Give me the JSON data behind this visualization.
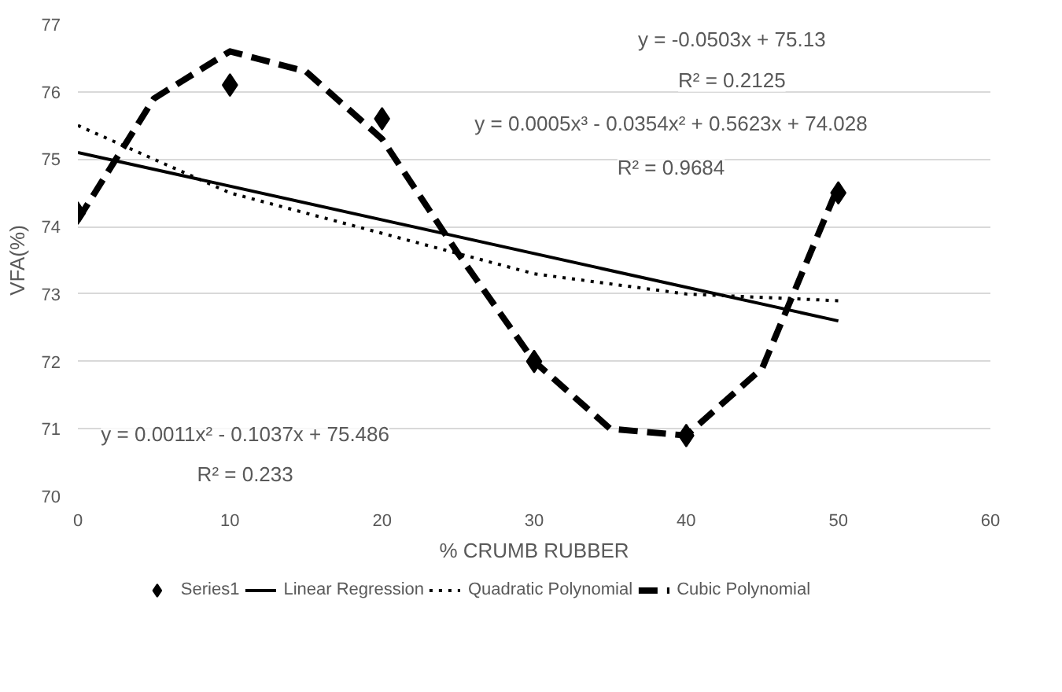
{
  "chart_data": {
    "type": "scatter",
    "xlabel": "% CRUMB RUBBER",
    "ylabel": "VFA(%)",
    "xlim": [
      0,
      60
    ],
    "xticks": [
      0,
      10,
      20,
      30,
      40,
      50,
      60
    ],
    "ylim": [
      70,
      77
    ],
    "yticks": [
      70,
      71,
      72,
      73,
      74,
      75,
      76,
      77
    ],
    "grid": "y",
    "legend": "bottom",
    "series": [
      {
        "name": "Series1",
        "type": "scatter",
        "marker": "diamond",
        "color": "#000000",
        "x": [
          0,
          10,
          20,
          30,
          40,
          50
        ],
        "values": [
          74.2,
          76.1,
          75.6,
          72.0,
          70.9,
          74.5
        ]
      },
      {
        "name": "Linear Regression",
        "type": "line",
        "line_style": "solid",
        "color": "#000000",
        "x": [
          0,
          50
        ],
        "values": [
          75.1,
          72.6
        ]
      },
      {
        "name": "Quadratic Polynomial",
        "type": "line",
        "line_style": "dotted",
        "color": "#000000",
        "x": [
          0,
          10,
          20,
          30,
          40,
          50
        ],
        "values": [
          75.5,
          74.5,
          73.9,
          73.3,
          73.0,
          72.9
        ]
      },
      {
        "name": "Cubic Polynomial",
        "type": "line",
        "line_style": "dashed",
        "color": "#000000",
        "x": [
          0,
          5,
          10,
          15,
          20,
          25,
          30,
          35,
          40,
          45,
          50
        ],
        "values": [
          74.1,
          75.9,
          76.6,
          76.3,
          75.3,
          73.6,
          72.0,
          71.0,
          70.9,
          71.9,
          74.6
        ]
      }
    ],
    "annotations": [
      "y = -0.0503x + 75.13",
      "R² = 0.2125",
      "y = 0.0005x³ - 0.0354x² + 0.5623x + 74.028",
      "R² = 0.9684",
      "y = 0.0011x² - 0.1037x + 75.486",
      "R² = 0.233"
    ]
  }
}
